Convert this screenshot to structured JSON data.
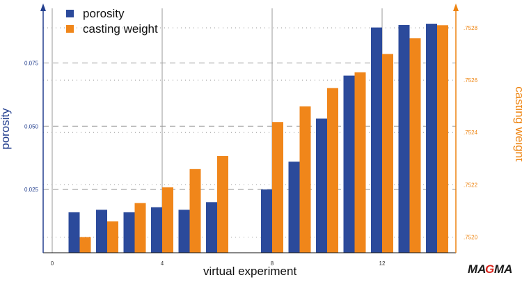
{
  "chart_data": {
    "type": "bar",
    "xlabel": "virtual experiment",
    "ylabel_left": "porosity",
    "ylabel_right": "casting weight",
    "x_ticks": [
      0,
      4,
      8,
      12
    ],
    "y_left_ticks": [
      "0.025",
      "0.050",
      "0.075"
    ],
    "y_right_ticks": [
      ".7520",
      ".7522",
      ".7524",
      ".7526",
      ".7528"
    ],
    "y_left_range": [
      0,
      0.093
    ],
    "y_right_range": [
      0.75194,
      0.75284
    ],
    "grid": true,
    "legend_position": "top-left",
    "series": [
      {
        "name": "porosity",
        "axis": "left",
        "color": "#2b4a9b",
        "x": [
          1,
          2,
          3,
          4,
          5,
          6,
          8,
          9,
          10,
          11,
          12,
          13,
          14
        ],
        "values": [
          0.016,
          0.017,
          0.016,
          0.018,
          0.017,
          0.02,
          0.025,
          0.036,
          0.053,
          0.07,
          0.089,
          0.09,
          0.0905
        ]
      },
      {
        "name": "casting weight",
        "axis": "right",
        "color": "#f0861a",
        "x": [
          1,
          2,
          3,
          4,
          5,
          6,
          8,
          9,
          10,
          11,
          12,
          13,
          14
        ],
        "values": [
          0.752,
          0.75206,
          0.75213,
          0.75219,
          0.75226,
          0.75231,
          0.75244,
          0.7525,
          0.75257,
          0.75263,
          0.7527,
          0.75276,
          0.75281
        ]
      }
    ]
  },
  "logo": {
    "text": "MAGMA"
  }
}
